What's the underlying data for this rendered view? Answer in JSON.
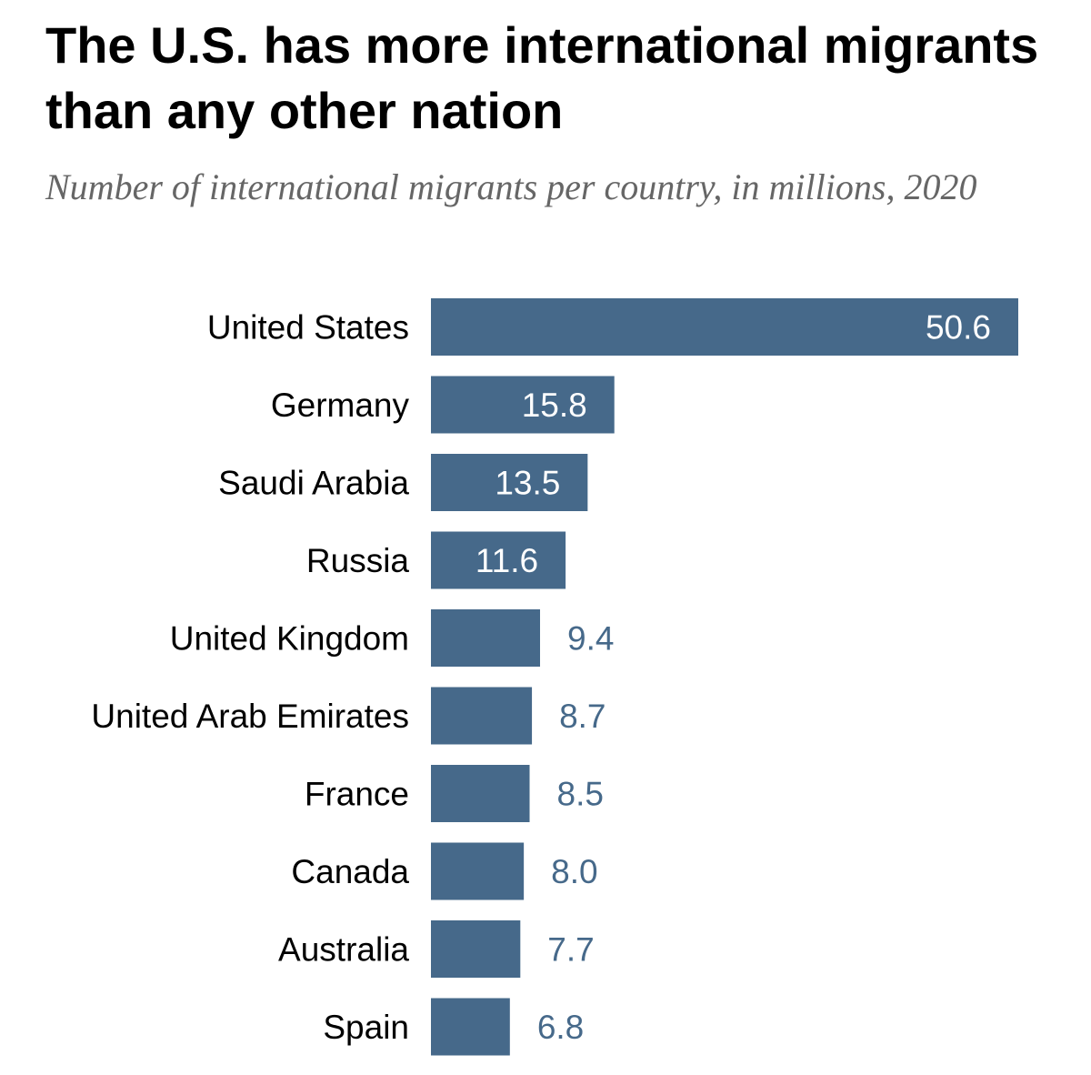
{
  "chart_data": {
    "type": "bar",
    "orientation": "horizontal",
    "title": "The U.S. has more international migrants than any other nation",
    "subtitle": "Number of international migrants per country, in millions, 2020",
    "categories": [
      "United States",
      "Germany",
      "Saudi Arabia",
      "Russia",
      "United Kingdom",
      "United Arab Emirates",
      "France",
      "Canada",
      "Australia",
      "Spain"
    ],
    "values": [
      50.6,
      15.8,
      13.5,
      11.6,
      9.4,
      8.7,
      8.5,
      8.0,
      7.7,
      6.8
    ],
    "value_labels": [
      "50.6",
      "15.8",
      "13.5",
      "11.6",
      "9.4",
      "8.7",
      "8.5",
      "8.0",
      "7.7",
      "6.8"
    ],
    "xlim": [
      0,
      50.6
    ],
    "grid": false,
    "legend": "none",
    "colors": {
      "bar": "#46698a",
      "label_inside": "#ffffff",
      "label_outside": "#46698a"
    }
  }
}
